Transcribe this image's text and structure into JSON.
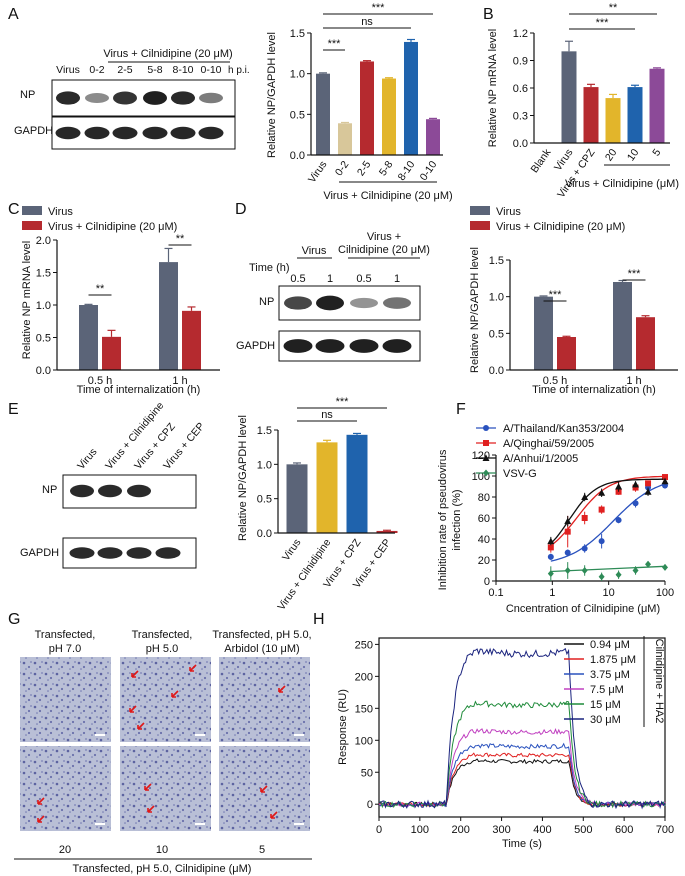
{
  "panels": {
    "A": "A",
    "B": "B",
    "C": "C",
    "D": "D",
    "E": "E",
    "F": "F",
    "G": "G",
    "H": "H"
  },
  "blotA": {
    "header": "Virus + Cilnidipine (20 μM)",
    "lanes": [
      "Virus",
      "0-2",
      "2-5",
      "5-8",
      "8-10",
      "0-10"
    ],
    "unit": "h p.i.",
    "rows": [
      "NP",
      "GAPDH"
    ],
    "np_intensity": [
      0.9,
      0.35,
      0.85,
      0.95,
      0.9,
      0.45
    ]
  },
  "blotD": {
    "header_virus": "Virus",
    "header_cil_1": "Virus +",
    "header_cil_2": "Cilnidipine (20 μM)",
    "time_label": "Time (h)",
    "times": [
      "0.5",
      "1",
      "0.5",
      "1"
    ],
    "rows": [
      "NP",
      "GAPDH"
    ],
    "np_intensity": [
      0.75,
      0.95,
      0.3,
      0.5
    ]
  },
  "blotE": {
    "lanes": [
      "Virus",
      "Virus + Cilnidipine",
      "Virus + CPZ",
      "Virus + CEP"
    ],
    "rows": [
      "NP",
      "GAPDH"
    ],
    "np_intensity": [
      0.9,
      0.9,
      0.9,
      0.0
    ]
  },
  "chart_data": [
    {
      "id": "A",
      "type": "bar",
      "ylabel": "Relative NP/GAPDH level",
      "ylim": [
        0,
        1.5
      ],
      "yticks": [
        "0.0",
        "0.5",
        "1.0",
        "1.5"
      ],
      "categories": [
        "Virus",
        "0-2",
        "2-5",
        "5-8",
        "8-10",
        "0-10"
      ],
      "values": [
        1.0,
        0.39,
        1.15,
        0.94,
        1.39,
        0.44
      ],
      "errors": [
        0.01,
        0.01,
        0.01,
        0.01,
        0.03,
        0.01
      ],
      "colors": [
        "#5b6478",
        "#d8c79a",
        "#b52a2f",
        "#e2b52b",
        "#1f63ad",
        "#8c4a98"
      ],
      "group_label": "Virus + Cilnidipine (20 μM)",
      "significance": [
        {
          "label": "***"
        },
        {
          "label": "ns"
        },
        {
          "label": "***"
        }
      ]
    },
    {
      "id": "B",
      "type": "bar",
      "ylabel": "Relative NP mRNA level",
      "ylim": [
        0,
        1.2
      ],
      "yticks": [
        "0.0",
        "0.3",
        "0.6",
        "0.9",
        "1.2"
      ],
      "categories": [
        "Blank",
        "Virus",
        "Virus + CPZ",
        "20",
        "10",
        "5"
      ],
      "values": [
        0.0,
        1.0,
        0.61,
        0.49,
        0.61,
        0.81
      ],
      "errors": [
        0.0,
        0.11,
        0.03,
        0.04,
        0.02,
        0.01
      ],
      "colors": [
        "#5b6478",
        "#5b6478",
        "#b52a2f",
        "#e2b52b",
        "#1f63ad",
        "#8c4a98"
      ],
      "group_label": "Virus + Cilnidipine (μM)",
      "significance": [
        {
          "label": "**"
        },
        {
          "label": "***"
        }
      ]
    },
    {
      "id": "C",
      "type": "bar",
      "ylabel": "Relative NP mRNA level",
      "xlabel": "Time of internalization (h)",
      "ylim": [
        0,
        2.0
      ],
      "yticks": [
        "0.0",
        "0.5",
        "1.0",
        "1.5",
        "2.0"
      ],
      "categories": [
        "0.5 h",
        "1 h"
      ],
      "series": [
        {
          "name": "Virus",
          "values": [
            1.0,
            1.66
          ],
          "errors": [
            0.01,
            0.21
          ],
          "color": "#5b6478"
        },
        {
          "name": "Virus + Cilnidipine (20 μM)",
          "values": [
            0.51,
            0.91
          ],
          "errors": [
            0.1,
            0.06
          ],
          "color": "#b52a2f"
        }
      ],
      "significance": [
        {
          "label": "**"
        },
        {
          "label": "**"
        }
      ]
    },
    {
      "id": "D",
      "type": "bar",
      "ylabel": "Relative NP/GAPDH level",
      "xlabel": "Time of internalization (h)",
      "ylim": [
        0,
        1.5
      ],
      "yticks": [
        "0.0",
        "0.5",
        "1.0",
        "1.5"
      ],
      "categories": [
        "0.5 h",
        "1 h"
      ],
      "series": [
        {
          "name": "Virus",
          "values": [
            1.0,
            1.2
          ],
          "errors": [
            0.01,
            0.02
          ],
          "color": "#5b6478"
        },
        {
          "name": "Virus + Cilnidipine (20 μM)",
          "values": [
            0.45,
            0.72
          ],
          "errors": [
            0.01,
            0.02
          ],
          "color": "#b52a2f"
        }
      ],
      "significance": [
        {
          "label": "***"
        },
        {
          "label": "***"
        }
      ]
    },
    {
      "id": "E",
      "type": "bar",
      "ylabel": "Relative NP/GAPDH level",
      "ylim": [
        0,
        1.5
      ],
      "yticks": [
        "0.0",
        "0.5",
        "1.0",
        "1.5"
      ],
      "categories": [
        "Virus",
        "Virus + Cilnidipine",
        "Virus + CPZ",
        "Virus + CEP"
      ],
      "values": [
        1.0,
        1.32,
        1.43,
        0.03
      ],
      "errors": [
        0.02,
        0.03,
        0.02,
        0.01
      ],
      "colors": [
        "#5b6478",
        "#e2b52b",
        "#1f63ad",
        "#b52a2f"
      ],
      "significance": [
        {
          "label": "ns"
        },
        {
          "label": "***"
        }
      ]
    },
    {
      "id": "F",
      "type": "scatter",
      "ylabel_1": "Inhibition rate of pseudovirus",
      "ylabel_2": "infection (%)",
      "xlabel": "Cncentration of Cilnidipine (μM)",
      "xscale": "log",
      "xlim": [
        0.1,
        100
      ],
      "xticks": [
        "0.1",
        "1",
        "10",
        "100"
      ],
      "ylim": [
        0,
        120
      ],
      "yticks": [
        "0",
        "20",
        "40",
        "60",
        "80",
        "100",
        "120"
      ],
      "x": [
        0.94,
        1.875,
        3.75,
        7.5,
        15,
        30,
        50,
        100
      ],
      "series": [
        {
          "name": "A/Thailand/Kan353/2004",
          "marker": "circle",
          "color": "#2a52be",
          "values": [
            23,
            27,
            31,
            38,
            58,
            74,
            89,
            91
          ],
          "errors": [
            3,
            3,
            4,
            7,
            3,
            4,
            3,
            3
          ],
          "fit": {
            "bottom": 14,
            "top": 100,
            "ec50": 12,
            "hill": 1.1
          }
        },
        {
          "name": "A/Qinghai/59/2005",
          "marker": "square",
          "color": "#e02020",
          "values": [
            32,
            47,
            60,
            68,
            85,
            89,
            93,
            99
          ],
          "errors": [
            5,
            15,
            6,
            4,
            3,
            4,
            2,
            2
          ],
          "fit": {
            "bottom": 20,
            "top": 100,
            "ec50": 2.7,
            "hill": 1.5
          }
        },
        {
          "name": "A/Anhui/1/2005",
          "marker": "triangle",
          "color": "#111111",
          "values": [
            38,
            57,
            80,
            84,
            90,
            92,
            85,
            95
          ],
          "errors": [
            4,
            5,
            4,
            4,
            5,
            3,
            4,
            3
          ],
          "fit": {
            "bottom": 20,
            "top": 97,
            "ec50": 2.0,
            "hill": 1.8
          }
        },
        {
          "name": "VSV-G",
          "marker": "diamond",
          "color": "#2e8b57",
          "values": [
            7,
            10,
            10,
            4,
            6,
            10,
            16,
            13
          ],
          "errors": [
            7,
            8,
            5,
            4,
            4,
            4,
            3,
            3
          ],
          "fit": {
            "linear": true
          }
        }
      ]
    },
    {
      "id": "H",
      "type": "line",
      "ylabel": "Response (RU)",
      "xlabel": "Time (s)",
      "xlim": [
        0,
        700
      ],
      "xticks": [
        "0",
        "100",
        "200",
        "300",
        "400",
        "500",
        "600",
        "700"
      ],
      "ylim": [
        -20,
        260
      ],
      "yticks": [
        "0",
        "50",
        "100",
        "150",
        "200",
        "250"
      ],
      "legend_title": "Cilnidipine + HA2",
      "series": [
        {
          "name": "0.94 μM",
          "color": "#111111",
          "plateau": 68
        },
        {
          "name": "1.875 μM",
          "color": "#e02020",
          "plateau": 78
        },
        {
          "name": "3.75 μM",
          "color": "#2a52be",
          "plateau": 92
        },
        {
          "name": "7.5 μM",
          "color": "#c040c0",
          "plateau": 115
        },
        {
          "name": "15 μM",
          "color": "#1f8b3a",
          "plateau": 158
        },
        {
          "name": "30 μM",
          "color": "#1a237e",
          "plateau": 240
        }
      ]
    }
  ],
  "micrographs": {
    "top_labels": [
      [
        "Transfected,",
        "pH 7.0"
      ],
      [
        "Transfected,",
        "pH 5.0"
      ],
      [
        "Transfected, pH 5.0,",
        "Arbidol (10 μM)"
      ]
    ],
    "bottom_values": [
      "20",
      "10",
      "5"
    ],
    "caption": "Transfected, pH 5.0, Cilnidipine (μM)"
  }
}
